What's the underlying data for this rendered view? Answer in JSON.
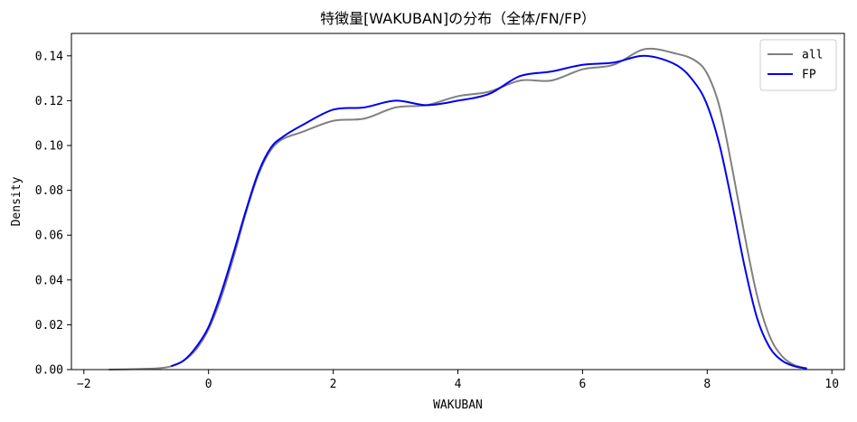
{
  "chart_data": {
    "type": "line",
    "title": "特徴量[WAKUBAN]の分布（全体/FN/FP）",
    "xlabel": "WAKUBAN",
    "ylabel": "Density",
    "xlim": [
      -2.2,
      10.2
    ],
    "ylim": [
      0,
      0.15
    ],
    "xticks": [
      -2,
      0,
      2,
      4,
      6,
      8,
      10
    ],
    "xtick_labels": [
      "−2",
      "0",
      "2",
      "4",
      "6",
      "8",
      "10"
    ],
    "yticks": [
      0,
      0.02,
      0.04,
      0.06,
      0.08,
      0.1,
      0.12,
      0.14
    ],
    "ytick_labels": [
      "0.00",
      "0.02",
      "0.04",
      "0.06",
      "0.08",
      "0.10",
      "0.12",
      "0.14"
    ],
    "grid": false,
    "legend_position": "top-right",
    "series": [
      {
        "name": "all",
        "color": "#808080",
        "x": [
          -1.6,
          -1.2,
          -0.8,
          -0.6,
          -0.4,
          -0.2,
          0.0,
          0.2,
          0.4,
          0.6,
          0.8,
          1.0,
          1.2,
          1.5,
          2.0,
          2.5,
          3.0,
          3.5,
          4.0,
          4.5,
          5.0,
          5.5,
          6.0,
          6.5,
          7.0,
          7.5,
          7.8,
          8.0,
          8.2,
          8.4,
          8.6,
          8.8,
          9.0,
          9.2,
          9.4,
          9.6
        ],
        "y": [
          0.0,
          0.0002,
          0.0006,
          0.0015,
          0.004,
          0.009,
          0.018,
          0.032,
          0.05,
          0.07,
          0.087,
          0.098,
          0.103,
          0.106,
          0.111,
          0.112,
          0.117,
          0.118,
          0.122,
          0.124,
          0.129,
          0.129,
          0.134,
          0.136,
          0.143,
          0.141,
          0.138,
          0.132,
          0.117,
          0.09,
          0.06,
          0.033,
          0.015,
          0.006,
          0.002,
          0.0005
        ]
      },
      {
        "name": "FP",
        "color": "#0000ee",
        "x": [
          -0.6,
          -0.4,
          -0.2,
          0.0,
          0.2,
          0.4,
          0.6,
          0.8,
          1.0,
          1.2,
          1.5,
          2.0,
          2.5,
          3.0,
          3.5,
          4.0,
          4.5,
          5.0,
          5.5,
          6.0,
          6.5,
          7.0,
          7.5,
          7.8,
          8.0,
          8.2,
          8.4,
          8.6,
          8.8,
          9.0,
          9.2,
          9.4,
          9.6
        ],
        "y": [
          0.0015,
          0.004,
          0.01,
          0.019,
          0.034,
          0.052,
          0.071,
          0.088,
          0.099,
          0.104,
          0.109,
          0.116,
          0.117,
          0.12,
          0.118,
          0.12,
          0.123,
          0.131,
          0.133,
          0.136,
          0.137,
          0.14,
          0.136,
          0.128,
          0.118,
          0.1,
          0.074,
          0.046,
          0.023,
          0.01,
          0.004,
          0.0015,
          0.0005
        ]
      }
    ]
  }
}
